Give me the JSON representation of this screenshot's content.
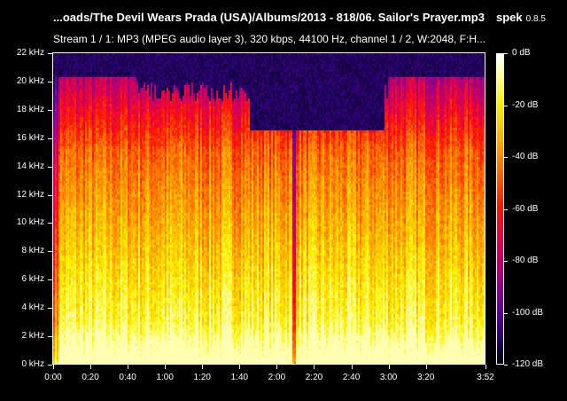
{
  "header": {
    "file_title": "...oads/The Devil Wears Prada (USA)/Albums/2013 - 818/06. Sailor's Prayer.mp3",
    "app_name": "spek",
    "app_version": "0.8.5",
    "stream_info": "Stream 1 / 1: MP3 (MPEG audio layer 3), 320 kbps, 44100 Hz, channel 1 / 2, W:2048, F:H..."
  },
  "chart_data": {
    "type": "heatmap",
    "title": "",
    "xlabel": "",
    "ylabel": "",
    "x_ticks": [
      "0:00",
      "0:20",
      "0:40",
      "1:00",
      "1:20",
      "1:40",
      "2:00",
      "2:20",
      "2:40",
      "3:00",
      "3:20",
      "3:52"
    ],
    "x_tick_seconds": [
      0,
      20,
      40,
      60,
      80,
      100,
      120,
      140,
      160,
      180,
      200,
      232
    ],
    "xlim": [
      0,
      232
    ],
    "y_ticks": [
      "0 kHz",
      "2 kHz",
      "4 kHz",
      "6 kHz",
      "8 kHz",
      "10 kHz",
      "12 kHz",
      "14 kHz",
      "16 kHz",
      "18 kHz",
      "20 kHz",
      "22 kHz"
    ],
    "y_tick_khz": [
      0,
      2,
      4,
      6,
      8,
      10,
      12,
      14,
      16,
      18,
      20,
      22
    ],
    "ylim": [
      0,
      22
    ],
    "colorbar_ticks": [
      "0 dB",
      "-20 dB",
      "-40 dB",
      "-60 dB",
      "-80 dB",
      "-100 dB",
      "-120 dB"
    ],
    "colorbar_values": [
      0,
      -20,
      -40,
      -60,
      -80,
      -100,
      -120
    ],
    "colorbar_range": [
      -120,
      0
    ],
    "grid": false,
    "colormap": [
      "#000000",
      "#24006a",
      "#6400a0",
      "#a8007a",
      "#e2004c",
      "#ff1a00",
      "#ff6a00",
      "#ffb000",
      "#fff200",
      "#ffffa0",
      "#ffffff"
    ]
  }
}
